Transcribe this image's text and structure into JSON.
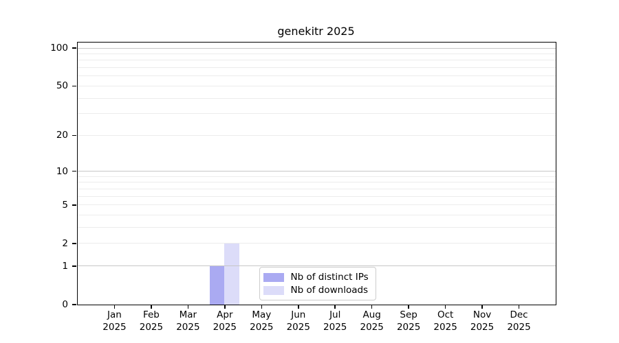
{
  "chart_data": {
    "type": "bar",
    "title": "genekitr 2025",
    "y_scale": "log1p",
    "x_year": "2025",
    "categories": [
      "Jan",
      "Feb",
      "Mar",
      "Apr",
      "May",
      "Jun",
      "Jul",
      "Aug",
      "Sep",
      "Oct",
      "Nov",
      "Dec"
    ],
    "series": [
      {
        "name": "Nb of distinct IPs",
        "color": "#aaaaf2",
        "values": [
          0,
          0,
          0,
          1,
          0,
          0,
          0,
          0,
          0,
          0,
          0,
          0
        ]
      },
      {
        "name": "Nb of downloads",
        "color": "#dcdcf9",
        "values": [
          0,
          0,
          0,
          2,
          0,
          0,
          0,
          0,
          0,
          0,
          0,
          0
        ]
      }
    ],
    "y_ticks": [
      0,
      1,
      2,
      5,
      10,
      20,
      50,
      100
    ],
    "major_gridlines": [
      1,
      10,
      100
    ],
    "minor_gridlines": [
      2,
      3,
      4,
      5,
      6,
      7,
      8,
      9,
      20,
      30,
      40,
      50,
      60,
      70,
      80,
      90
    ],
    "ylim": [
      0,
      110
    ],
    "grid": "on",
    "legend_position": "inside-bottom-center"
  },
  "colors": {
    "major_grid": "#c6c6c6",
    "minor_grid": "#ececec",
    "axis": "#000000",
    "legend_border": "#cccccc",
    "background": "#ffffff"
  }
}
